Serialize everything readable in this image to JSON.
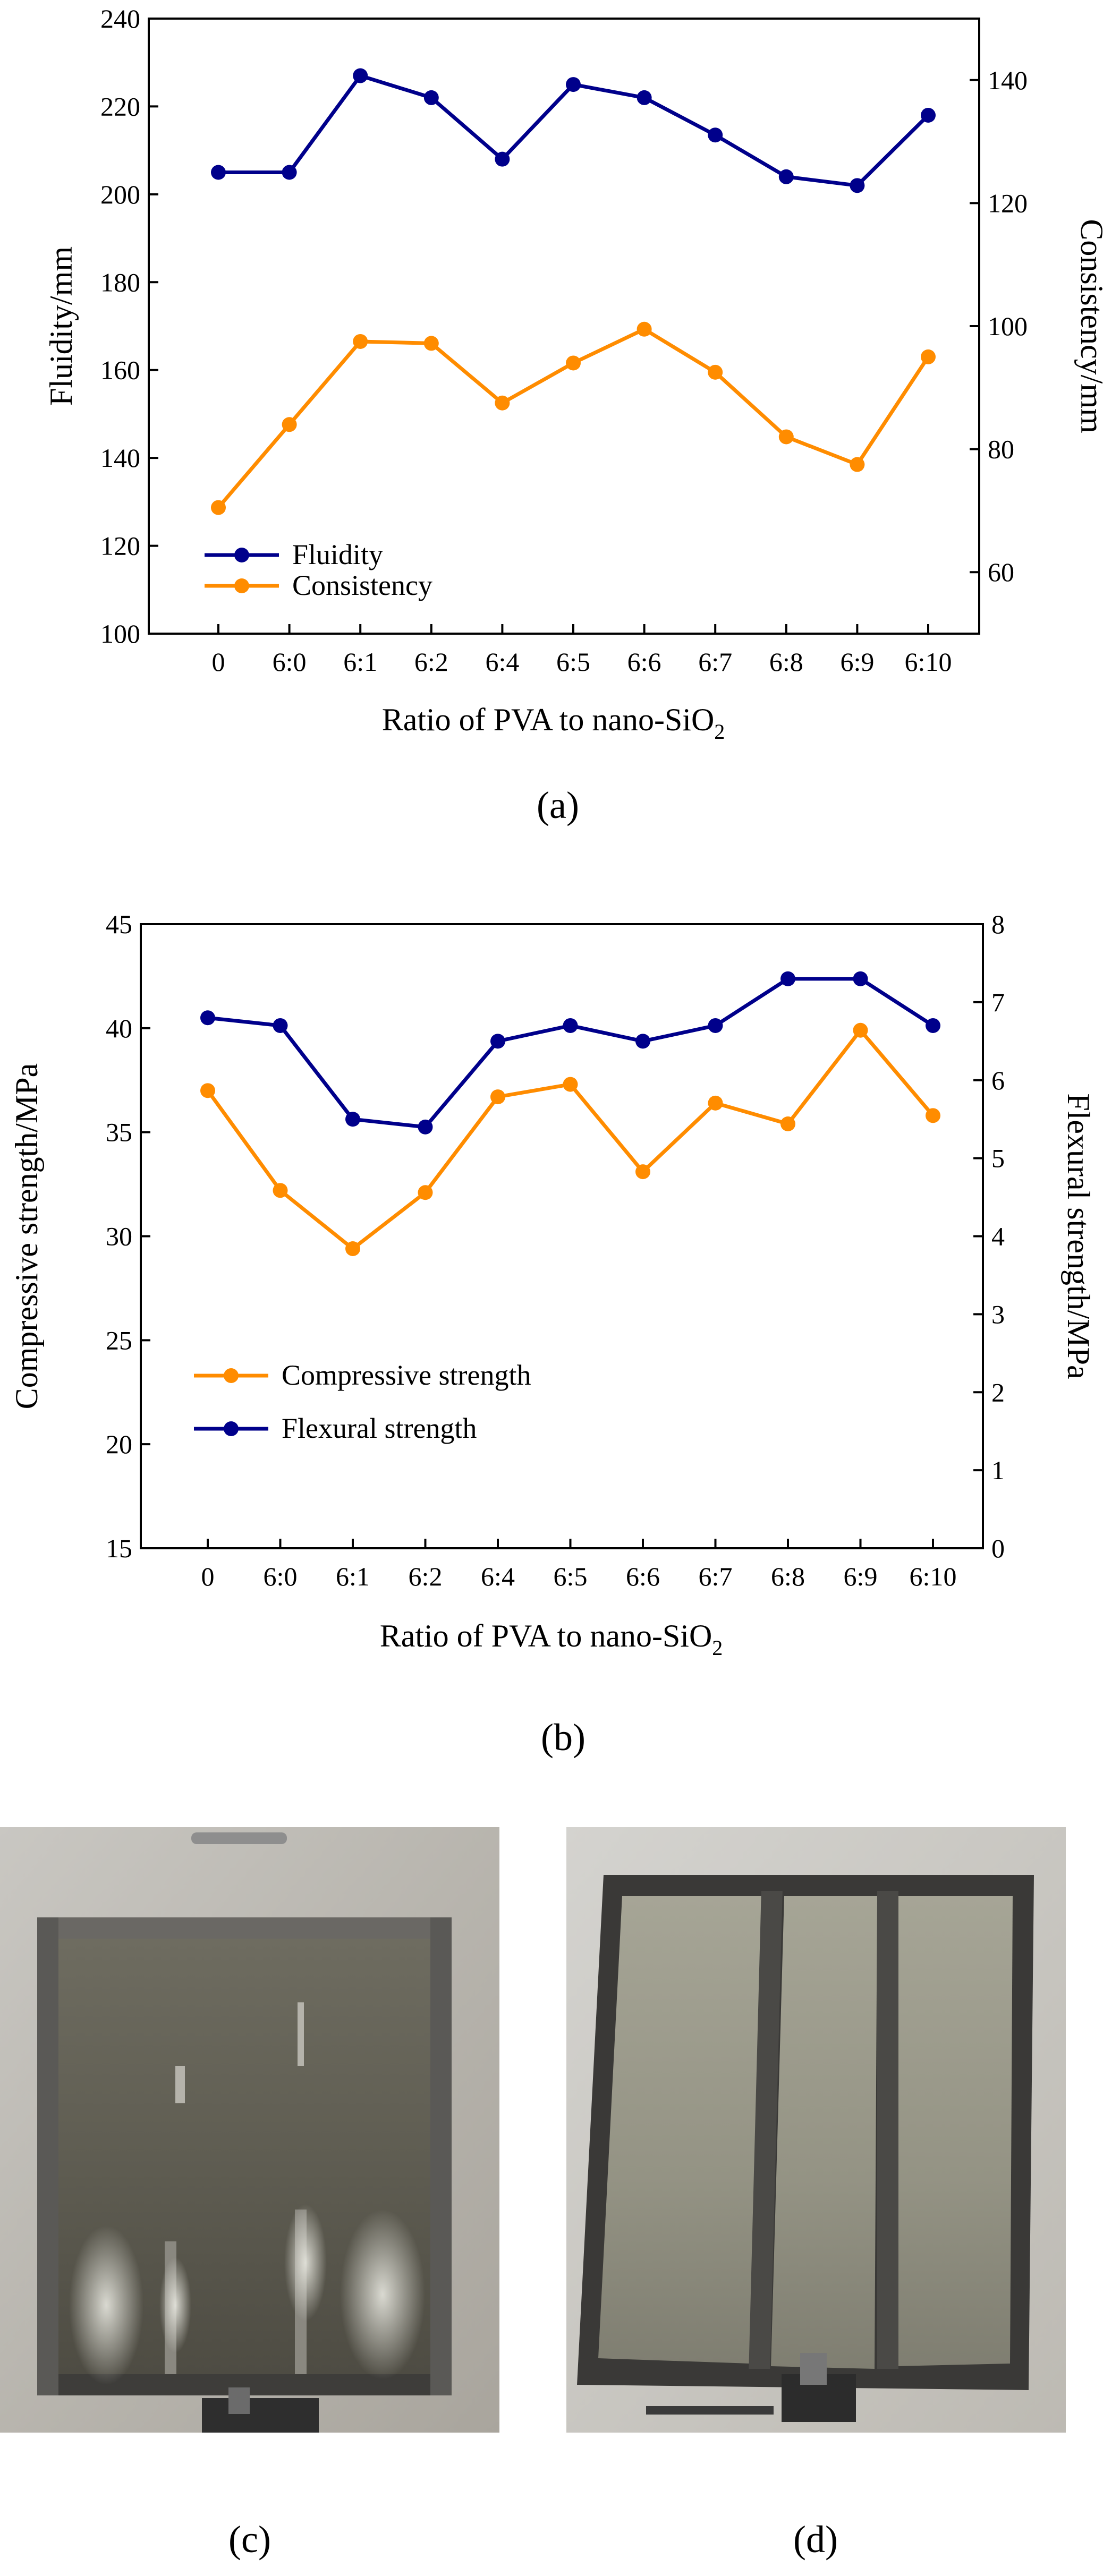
{
  "chart_data": [
    {
      "type": "line",
      "panel_label": "(a)",
      "categories": [
        "0",
        "6:0",
        "6:1",
        "6:2",
        "6:4",
        "6:5",
        "6:6",
        "6:7",
        "6:8",
        "6:9",
        "6:10"
      ],
      "xlabel": "Ratio of PVA to nano-SiO",
      "xlabel_sub": "2",
      "ylabel": "Fluidity/mm",
      "y2label": "Consistency/mm",
      "ylim": [
        100,
        240
      ],
      "yticks": [
        100,
        120,
        140,
        160,
        180,
        200,
        220,
        240
      ],
      "y2lim": [
        50,
        150
      ],
      "y2ticks": [
        60,
        80,
        100,
        120,
        140
      ],
      "grid": false,
      "legend_position": "bottom-left",
      "series": [
        {
          "name": "Fluidity",
          "axis": "left",
          "color": "#00008B",
          "values": [
            205,
            205,
            227,
            222,
            208,
            225,
            222,
            213.5,
            204,
            202,
            218
          ]
        },
        {
          "name": "Consistency",
          "axis": "right",
          "color": "#FF8C00",
          "values": [
            70.5,
            84,
            97.5,
            97.2,
            87.5,
            94,
            99.5,
            92.5,
            82,
            77.5,
            95
          ]
        }
      ]
    },
    {
      "type": "line",
      "panel_label": "(b)",
      "categories": [
        "0",
        "6:0",
        "6:1",
        "6:2",
        "6:4",
        "6:5",
        "6:6",
        "6:7",
        "6:8",
        "6:9",
        "6:10"
      ],
      "xlabel": "Ratio of PVA to nano-SiO",
      "xlabel_sub": "2",
      "ylabel": "Compressive strength/MPa",
      "y2label": "Flexural strength/MPa",
      "ylim": [
        15,
        45
      ],
      "yticks": [
        15,
        20,
        25,
        30,
        35,
        40,
        45
      ],
      "y2lim": [
        0,
        8
      ],
      "y2ticks": [
        0,
        1,
        2,
        3,
        4,
        5,
        6,
        7,
        8
      ],
      "grid": false,
      "legend_position": "bottom-left",
      "series": [
        {
          "name": "Compressive strength",
          "axis": "left",
          "color": "#FF8C00",
          "values": [
            37,
            32.2,
            29.4,
            32.1,
            36.7,
            37.3,
            33.1,
            36.4,
            35.4,
            39.9,
            35.8
          ]
        },
        {
          "name": "Flexural strength",
          "axis": "right",
          "color": "#00008B",
          "values": [
            6.8,
            6.7,
            5.5,
            5.4,
            6.5,
            6.7,
            6.5,
            6.7,
            7.3,
            7.3,
            6.7
          ]
        }
      ]
    }
  ],
  "photos": {
    "c_label": "(c)",
    "d_label": "(d)"
  }
}
